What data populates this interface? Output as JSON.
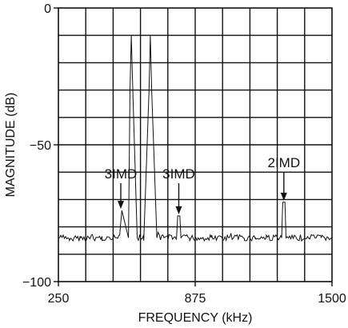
{
  "chart_data": {
    "type": "line",
    "title": "",
    "xlabel": "FREQUENCY (kHz)",
    "ylabel": "MAGNITUDE (dB)",
    "xlim": [
      250,
      1500
    ],
    "ylim": [
      -100,
      0
    ],
    "x_ticks": [
      250,
      875,
      1500
    ],
    "x_tick_labels": [
      "250",
      "875",
      "1500"
    ],
    "y_ticks": [
      0,
      -50,
      -100
    ],
    "y_tick_labels": [
      "0",
      "−50",
      "−100"
    ],
    "grid": true,
    "grid_divisions": {
      "x": 10,
      "y": 10
    },
    "noise_floor_db": -84,
    "series": [
      {
        "x": [
          250,
          300,
          350,
          400,
          450,
          510,
          530,
          540,
          570,
          577,
          583,
          590,
          610,
          640,
          664,
          670,
          676,
          700,
          750,
          790,
          795,
          805,
          810,
          850,
          900,
          950,
          1000,
          1050,
          1100,
          1150,
          1200,
          1250,
          1270,
          1275,
          1285,
          1290,
          1350,
          1400,
          1450,
          1500
        ],
        "y": [
          -84,
          -85,
          -84,
          -83,
          -85,
          -84,
          -83,
          -74,
          -84,
          -30,
          -10,
          -30,
          -84,
          -85,
          -30,
          -10,
          -30,
          -84,
          -85,
          -84,
          -76,
          -76,
          -84,
          -85,
          -84,
          -83,
          -85,
          -84,
          -85,
          -84,
          -83,
          -84,
          -84,
          -71,
          -71,
          -84,
          -85,
          -84,
          -84,
          -84
        ]
      }
    ],
    "annotations": [
      {
        "text": "3IMD",
        "x": 535,
        "y": -74
      },
      {
        "text": "3IMD",
        "x": 800,
        "y": -76
      },
      {
        "text": "2IMD",
        "x": 1280,
        "y": -71
      }
    ],
    "colors": {
      "line": "#111111",
      "grid": "#111111",
      "background": "#ffffff"
    }
  }
}
